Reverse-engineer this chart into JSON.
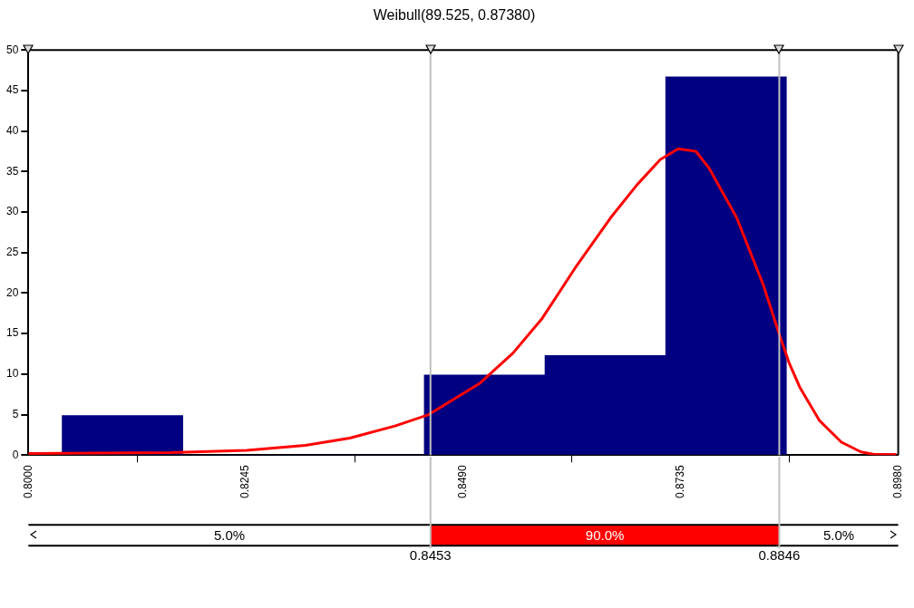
{
  "chart_data": {
    "type": "histogram",
    "title": "Weibull(89.525, 0.87380)",
    "series": [
      {
        "type": "histogram",
        "color": "#000080",
        "bins": [
          0.8038,
          0.8174,
          0.831,
          0.8446,
          0.8582,
          0.8718,
          0.8854
        ],
        "values": [
          4.9,
          0,
          0,
          9.9,
          12.3,
          46.7
        ]
      },
      {
        "type": "line",
        "color": "#ff0000",
        "x": [
          0.8,
          0.816,
          0.8246,
          0.8312,
          0.8362,
          0.8413,
          0.8451,
          0.8509,
          0.8546,
          0.8579,
          0.8616,
          0.8656,
          0.8686,
          0.8712,
          0.8732,
          0.8752,
          0.8767,
          0.8798,
          0.8828,
          0.8846,
          0.8857,
          0.8869,
          0.8891,
          0.8916,
          0.8938,
          0.8953,
          0.8978
        ],
        "values": [
          0.2,
          0.3,
          0.6,
          1.2,
          2.1,
          3.6,
          5.0,
          8.9,
          12.6,
          16.9,
          23.1,
          29.3,
          33.4,
          36.5,
          37.8,
          37.5,
          35.4,
          29.3,
          21.0,
          14.9,
          11.4,
          8.4,
          4.3,
          1.6,
          0.4,
          0.1,
          0.1
        ]
      }
    ],
    "xlim": [
      0.8,
      0.898
    ],
    "xticks": [
      {
        "value": 0.8,
        "label": "0.8000"
      },
      {
        "value": 0.8245,
        "label": "0.8245"
      },
      {
        "value": 0.849,
        "label": "0.8490"
      },
      {
        "value": 0.8735,
        "label": "0.8735"
      },
      {
        "value": 0.898,
        "label": "0.8980"
      }
    ],
    "ylim": [
      0,
      50
    ],
    "yticks": [
      0,
      5,
      10,
      15,
      20,
      25,
      30,
      35,
      40,
      45,
      50
    ],
    "ref_lines": [
      {
        "axis": "x",
        "value": 0.8453,
        "label": "0.8453",
        "color": "#c0c0c0"
      },
      {
        "axis": "x",
        "value": 0.8846,
        "label": "0.8846",
        "color": "#c0c0c0"
      }
    ],
    "annotations": [
      "5.0%",
      "90.0%",
      "5.0%"
    ],
    "grid": false,
    "legend": false,
    "marker": "none",
    "line_style": "solid"
  }
}
